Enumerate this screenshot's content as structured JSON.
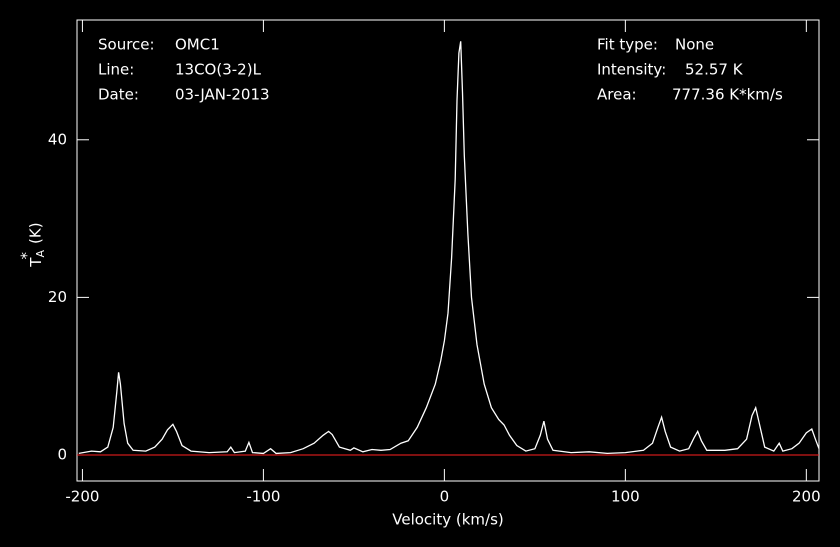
{
  "chart_data": {
    "type": "line",
    "xlabel": "Velocity (km/s)",
    "ylabel": {
      "base": "T",
      "sub": "A",
      "sup": "*",
      "unit": "(K)"
    },
    "info_left": [
      {
        "label": "Source:",
        "value": "OMC1"
      },
      {
        "label": "Line:",
        "value": "13CO(3-2)L"
      },
      {
        "label": "Date:",
        "value": "03-JAN-2013"
      }
    ],
    "info_right": [
      {
        "label": "Fit type:",
        "value": "None"
      },
      {
        "label": "Intensity:",
        "value": "52.57 K"
      },
      {
        "label": "Area:",
        "value": "777.36 K*km/s"
      }
    ],
    "x": [
      -202,
      -195,
      -190,
      -186,
      -183,
      -181,
      -180,
      -179,
      -177,
      -175,
      -172,
      -165,
      -160,
      -156,
      -153,
      -150,
      -148,
      -145,
      -140,
      -130,
      -120,
      -118,
      -116,
      -110,
      -108,
      -106,
      -100,
      -96,
      -93,
      -85,
      -78,
      -72,
      -67,
      -64,
      -62,
      -58,
      -52,
      -50,
      -45,
      -40,
      -35,
      -30,
      -24,
      -20,
      -15,
      -10,
      -5,
      -2,
      0,
      2,
      4,
      6,
      7,
      8,
      9,
      10,
      11,
      13,
      15,
      18,
      22,
      26,
      30,
      33,
      36,
      40,
      45,
      50,
      53,
      55,
      57,
      60,
      70,
      80,
      90,
      100,
      110,
      115,
      118,
      120,
      122,
      125,
      130,
      135,
      138,
      140,
      142,
      145,
      155,
      162,
      167,
      170,
      172,
      174,
      177,
      182,
      185,
      187,
      192,
      196,
      200,
      203,
      205,
      207
    ],
    "series": [
      {
        "color": "#ffffff",
        "values": [
          0.2,
          0.5,
          0.4,
          1.0,
          3.5,
          8,
          10.5,
          9,
          4,
          1.5,
          0.6,
          0.5,
          1.0,
          2.0,
          3.2,
          3.9,
          3.0,
          1.2,
          0.5,
          0.3,
          0.4,
          1.0,
          0.3,
          0.5,
          1.6,
          0.3,
          0.2,
          0.8,
          0.2,
          0.3,
          0.8,
          1.5,
          2.5,
          3.0,
          2.6,
          1.0,
          0.6,
          0.9,
          0.4,
          0.7,
          0.6,
          0.7,
          1.5,
          1.8,
          3.5,
          6,
          9,
          12,
          14.5,
          18,
          25,
          35,
          45,
          51,
          52.5,
          46,
          38,
          28,
          20,
          14,
          9,
          6,
          4.5,
          3.8,
          2.5,
          1.2,
          0.5,
          0.8,
          2.5,
          4.3,
          2.0,
          0.6,
          0.3,
          0.4,
          0.2,
          0.3,
          0.6,
          1.5,
          3.5,
          4.8,
          3.0,
          1.0,
          0.5,
          0.8,
          2.2,
          3.0,
          1.8,
          0.6,
          0.6,
          0.8,
          2.0,
          5,
          6,
          4,
          1.0,
          0.5,
          1.5,
          0.5,
          0.8,
          1.5,
          2.8,
          3.3,
          2.0,
          0.8
        ]
      }
    ],
    "baseline": {
      "value": 0,
      "color": "#ff2020"
    },
    "xlim": [
      -203,
      207
    ],
    "ylim": [
      -3.3,
      55.2
    ],
    "xticks": [
      -200,
      -100,
      0,
      100,
      200
    ],
    "yticks": [
      0,
      20,
      40
    ],
    "background": "#000000",
    "axis_color": "#ffffff"
  }
}
